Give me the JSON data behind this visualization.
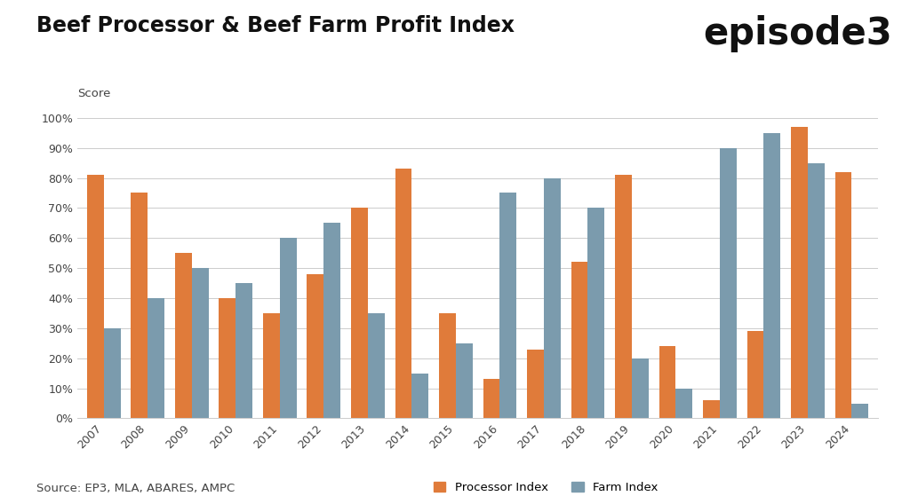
{
  "title": "Beef Processor & Beef Farm Profit Index",
  "ylabel": "Score",
  "source": "Source: EP3, MLA, ABARES, AMPC",
  "years": [
    2007,
    2008,
    2009,
    2010,
    2011,
    2012,
    2013,
    2014,
    2015,
    2016,
    2017,
    2018,
    2019,
    2020,
    2021,
    2022,
    2023,
    2024
  ],
  "processor_index": [
    0.81,
    0.75,
    0.55,
    0.4,
    0.35,
    0.48,
    0.7,
    0.83,
    0.35,
    0.13,
    0.23,
    0.52,
    0.81,
    0.24,
    0.06,
    0.29,
    0.97,
    0.82
  ],
  "farm_index": [
    0.3,
    0.4,
    0.5,
    0.45,
    0.6,
    0.65,
    0.35,
    0.15,
    0.25,
    0.75,
    0.8,
    0.7,
    0.2,
    0.1,
    0.9,
    0.95,
    0.85,
    0.05
  ],
  "processor_color": "#E07B3A",
  "farm_color": "#7B9BAD",
  "background_color": "#FFFFFF",
  "grid_color": "#CCCCCC",
  "title_fontsize": 17,
  "label_fontsize": 9.5,
  "tick_fontsize": 9,
  "legend_label_processor": "Processor Index",
  "legend_label_farm": "Farm Index",
  "ylim": [
    0,
    1.04
  ],
  "yticks": [
    0.0,
    0.1,
    0.2,
    0.3,
    0.4,
    0.5,
    0.6,
    0.7,
    0.8,
    0.9,
    1.0
  ],
  "ytick_labels": [
    "0%",
    "10%",
    "20%",
    "30%",
    "40%",
    "50%",
    "60%",
    "70%",
    "80%",
    "90%",
    "100%"
  ],
  "bar_width": 0.38,
  "logo_text": "episode3",
  "logo_fontsize": 30
}
